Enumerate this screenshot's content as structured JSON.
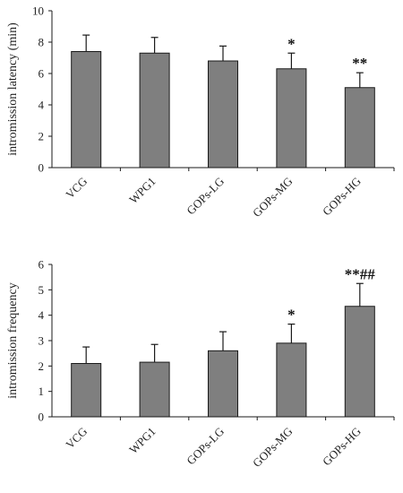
{
  "chart_data": [
    {
      "type": "bar",
      "ylabel": "intromission latency (min)",
      "ylim": [
        0,
        10
      ],
      "yticks": [
        0,
        2,
        4,
        6,
        8,
        10
      ],
      "categories": [
        "VCG",
        "WPG1",
        "GOPs-LG",
        "GOPs-MG",
        "GOPs-HG"
      ],
      "values": [
        7.4,
        7.3,
        6.8,
        6.3,
        5.1
      ],
      "errors": [
        1.05,
        1.0,
        0.95,
        1.0,
        0.95
      ],
      "annotations": [
        "",
        "",
        "",
        "*",
        "**"
      ],
      "grid": false,
      "bar_color": "#7f7f7f"
    },
    {
      "type": "bar",
      "ylabel": "intromission frequency",
      "ylim": [
        0,
        6
      ],
      "yticks": [
        0,
        1,
        2,
        3,
        4,
        5,
        6
      ],
      "categories": [
        "VCG",
        "WPG1",
        "GOPs-LG",
        "GOPs-MG",
        "GOPs-HG"
      ],
      "values": [
        2.1,
        2.15,
        2.6,
        2.9,
        4.35
      ],
      "errors": [
        0.65,
        0.7,
        0.75,
        0.75,
        0.9
      ],
      "annotations": [
        "",
        "",
        "",
        "*",
        "**##"
      ],
      "grid": false,
      "bar_color": "#7f7f7f"
    }
  ]
}
